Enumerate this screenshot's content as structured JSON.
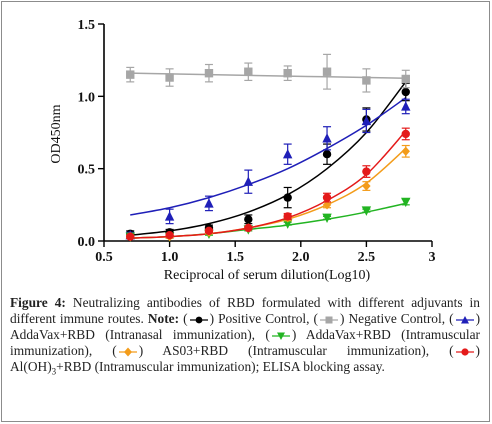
{
  "chart_data": {
    "type": "scatter",
    "title": "",
    "xlabel": "Reciprocal of serum dilution(Log10)",
    "ylabel": "OD450nm",
    "xlim": [
      0.5,
      3
    ],
    "ylim": [
      0,
      1.5
    ],
    "x_ticks": [
      "0.5",
      "1.0",
      "1.5",
      "2.0",
      "2.5",
      "3"
    ],
    "y_ticks": [
      "0.0",
      "0.5",
      "1.0",
      "1.5"
    ],
    "x": [
      0.7,
      1.0,
      1.3,
      1.6,
      1.9,
      2.2,
      2.5,
      2.8
    ],
    "grid": false,
    "series": [
      {
        "name": "Positive Control",
        "color": "#000000",
        "marker": "circle",
        "values": [
          0.05,
          0.06,
          0.09,
          0.15,
          0.3,
          0.6,
          0.84,
          1.03
        ],
        "errors": [
          0.02,
          0.02,
          0.02,
          0.03,
          0.07,
          0.07,
          0.08,
          0.06
        ],
        "fit": [
          0.04,
          0.07,
          0.12,
          0.2,
          0.32,
          0.5,
          0.75,
          1.1
        ]
      },
      {
        "name": "Negative Control",
        "color": "#a6a6a6",
        "marker": "square",
        "values": [
          1.15,
          1.13,
          1.16,
          1.17,
          1.16,
          1.17,
          1.11,
          1.12
        ],
        "errors": [
          0.05,
          0.06,
          0.06,
          0.06,
          0.05,
          0.12,
          0.08,
          0.06
        ],
        "fit": [
          1.16,
          1.155,
          1.15,
          1.145,
          1.14,
          1.135,
          1.13,
          1.125
        ]
      },
      {
        "name": "AddaVax+RBD (Intranasal immunization)",
        "color": "#1f1fb8",
        "marker": "triangle-up",
        "values": [
          0.04,
          0.17,
          0.26,
          0.41,
          0.6,
          0.71,
          0.83,
          0.93
        ],
        "errors": [
          0.02,
          0.05,
          0.05,
          0.08,
          0.07,
          0.08,
          0.08,
          0.05
        ],
        "fit": [
          0.18,
          0.23,
          0.3,
          0.39,
          0.5,
          0.64,
          0.8,
          0.99
        ]
      },
      {
        "name": "AddaVax+RBD (Intramuscular immunization)",
        "color": "#22b422",
        "marker": "triangle-down",
        "values": [
          0.03,
          0.03,
          0.05,
          0.08,
          0.12,
          0.16,
          0.21,
          0.27
        ],
        "errors": [
          0.01,
          0.01,
          0.01,
          0.01,
          0.01,
          0.01,
          0.01,
          0.02
        ],
        "fit": [
          0.02,
          0.03,
          0.05,
          0.08,
          0.11,
          0.15,
          0.2,
          0.26
        ]
      },
      {
        "name": "AS03+RBD (Intramuscular immunization)",
        "color": "#f39c1a",
        "marker": "diamond",
        "values": [
          0.03,
          0.03,
          0.06,
          0.09,
          0.16,
          0.25,
          0.38,
          0.62
        ],
        "errors": [
          0.01,
          0.01,
          0.01,
          0.01,
          0.02,
          0.02,
          0.03,
          0.04
        ],
        "fit": [
          0.02,
          0.03,
          0.05,
          0.09,
          0.15,
          0.25,
          0.4,
          0.64
        ]
      },
      {
        "name": "Al(OH)3+RBD (Intramuscular immunization)",
        "color": "#e41a1a",
        "marker": "circle",
        "values": [
          0.03,
          0.04,
          0.07,
          0.09,
          0.17,
          0.3,
          0.48,
          0.74
        ],
        "errors": [
          0.01,
          0.01,
          0.01,
          0.01,
          0.02,
          0.03,
          0.04,
          0.04
        ],
        "fit": [
          0.02,
          0.03,
          0.05,
          0.09,
          0.16,
          0.28,
          0.46,
          0.76
        ]
      }
    ]
  },
  "caption": {
    "label": "Figure 4:",
    "text1": "Neutralizing antibodies of RBD formulated with different adjuvants in different immune routes.",
    "note": "Note:",
    "positive": "Positive Control,",
    "negative": "Negative Control,",
    "addavax_in": "AddaVax+RBD (Intranasal immunization),",
    "addavax_im": "AddaVax+RBD (Intramuscular immunization),",
    "as03": "AS03+RBD (Intramuscular immunization),",
    "aloh_a": "Al(OH)",
    "aloh_sub": "3",
    "aloh_b": "+RBD (Intramuscular immunization); ELISA blocking assay."
  }
}
